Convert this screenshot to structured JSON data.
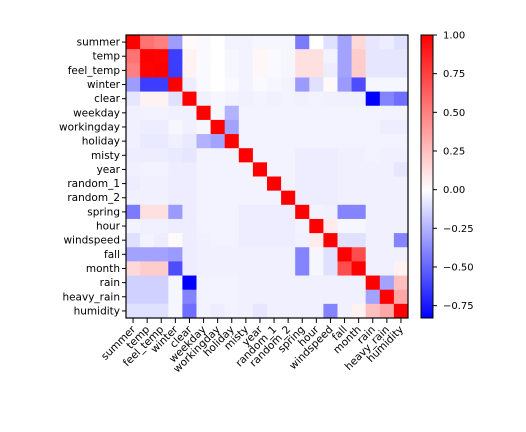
{
  "chart_data": {
    "type": "heatmap",
    "title": "",
    "xlabel": "",
    "ylabel": "",
    "labels": [
      "summer",
      "temp",
      "feel_temp",
      "winter",
      "clear",
      "weekday",
      "workingday",
      "holiday",
      "misty",
      "year",
      "random_1",
      "random_2",
      "spring",
      "hour",
      "windspeed",
      "fall",
      "month",
      "rain",
      "heavy_rain",
      "humidity"
    ],
    "matrix": [
      [
        1.0,
        0.55,
        0.5,
        -0.32,
        0.02,
        -0.02,
        0.0,
        -0.04,
        -0.04,
        -0.03,
        -0.03,
        -0.03,
        -0.43,
        0.0,
        -0.1,
        -0.3,
        0.15,
        -0.08,
        -0.06,
        -0.1
      ],
      [
        0.55,
        1.0,
        0.99,
        -0.63,
        0.05,
        -0.02,
        0.0,
        -0.03,
        -0.04,
        0.03,
        -0.02,
        -0.03,
        0.12,
        0.12,
        -0.04,
        -0.3,
        0.2,
        -0.08,
        -0.08,
        -0.08
      ],
      [
        0.5,
        0.99,
        1.0,
        -0.63,
        0.05,
        -0.02,
        0.0,
        -0.03,
        -0.04,
        0.03,
        -0.02,
        -0.03,
        0.12,
        0.12,
        -0.06,
        -0.3,
        0.2,
        -0.08,
        -0.08,
        -0.08
      ],
      [
        -0.32,
        -0.63,
        -0.63,
        1.0,
        -0.06,
        -0.02,
        0.0,
        -0.02,
        -0.04,
        -0.02,
        -0.03,
        -0.04,
        -0.33,
        -0.1,
        0.02,
        -0.33,
        -0.58,
        -0.03,
        -0.03,
        -0.03
      ],
      [
        -0.08,
        0.05,
        0.05,
        -0.1,
        1.0,
        -0.05,
        -0.03,
        -0.04,
        -0.05,
        -0.04,
        -0.05,
        -0.04,
        -0.05,
        -0.04,
        -0.05,
        -0.05,
        -0.05,
        -0.83,
        -0.4,
        -0.47
      ],
      [
        -0.05,
        -0.04,
        -0.04,
        -0.05,
        -0.05,
        1.0,
        -0.03,
        -0.25,
        -0.04,
        -0.04,
        -0.04,
        -0.04,
        -0.04,
        -0.04,
        -0.04,
        -0.04,
        -0.04,
        -0.04,
        -0.04,
        -0.04
      ],
      [
        -0.05,
        -0.06,
        -0.06,
        -0.03,
        -0.05,
        -0.03,
        1.0,
        -0.3,
        -0.04,
        -0.04,
        -0.04,
        -0.04,
        -0.04,
        -0.04,
        -0.04,
        -0.04,
        -0.04,
        -0.04,
        -0.06,
        -0.06
      ],
      [
        -0.05,
        -0.07,
        -0.07,
        -0.05,
        -0.07,
        -0.25,
        -0.3,
        1.0,
        -0.04,
        -0.04,
        -0.04,
        -0.04,
        -0.04,
        -0.04,
        -0.04,
        -0.04,
        -0.04,
        -0.04,
        -0.04,
        -0.04
      ],
      [
        -0.06,
        -0.06,
        -0.06,
        -0.07,
        -0.08,
        -0.04,
        -0.04,
        -0.04,
        1.0,
        -0.04,
        -0.04,
        -0.04,
        -0.06,
        -0.06,
        -0.06,
        -0.05,
        -0.05,
        -0.04,
        -0.05,
        -0.05
      ],
      [
        -0.05,
        -0.04,
        -0.04,
        -0.06,
        -0.06,
        -0.04,
        -0.04,
        -0.04,
        -0.04,
        1.0,
        -0.04,
        -0.04,
        -0.06,
        -0.06,
        -0.06,
        -0.05,
        -0.05,
        -0.05,
        -0.05,
        -0.08
      ],
      [
        -0.06,
        -0.05,
        -0.05,
        -0.06,
        -0.06,
        -0.04,
        -0.04,
        -0.04,
        -0.04,
        -0.04,
        1.0,
        -0.04,
        -0.06,
        -0.06,
        -0.06,
        -0.05,
        -0.05,
        -0.05,
        -0.05,
        -0.05
      ],
      [
        -0.05,
        -0.05,
        -0.05,
        -0.06,
        -0.06,
        -0.04,
        -0.04,
        -0.04,
        -0.04,
        -0.04,
        -0.04,
        1.0,
        -0.06,
        -0.06,
        -0.06,
        -0.05,
        -0.05,
        -0.05,
        -0.05,
        -0.05
      ],
      [
        -0.43,
        0.12,
        0.12,
        -0.33,
        -0.06,
        -0.04,
        -0.04,
        -0.04,
        -0.06,
        -0.06,
        -0.06,
        -0.06,
        1.0,
        -0.04,
        -0.05,
        -0.4,
        -0.4,
        -0.05,
        -0.05,
        -0.05
      ],
      [
        -0.04,
        -0.05,
        -0.05,
        -0.06,
        -0.06,
        -0.04,
        -0.04,
        -0.04,
        -0.06,
        -0.06,
        -0.06,
        -0.06,
        -0.04,
        1.0,
        0.08,
        -0.03,
        -0.03,
        -0.05,
        -0.05,
        -0.05
      ],
      [
        -0.1,
        -0.04,
        -0.06,
        0.02,
        -0.06,
        -0.05,
        -0.04,
        -0.04,
        -0.06,
        -0.06,
        -0.06,
        -0.06,
        -0.05,
        0.08,
        1.0,
        -0.1,
        -0.1,
        -0.05,
        -0.05,
        -0.4
      ],
      [
        -0.3,
        -0.3,
        -0.3,
        -0.33,
        -0.06,
        -0.05,
        -0.05,
        -0.05,
        -0.05,
        -0.05,
        -0.05,
        -0.05,
        -0.4,
        -0.03,
        -0.1,
        1.0,
        0.7,
        -0.05,
        -0.05,
        -0.05
      ],
      [
        0.15,
        0.2,
        0.2,
        -0.58,
        -0.06,
        -0.05,
        -0.05,
        -0.05,
        -0.05,
        -0.05,
        -0.05,
        -0.05,
        -0.4,
        -0.03,
        -0.1,
        0.7,
        1.0,
        -0.05,
        -0.05,
        0.05
      ],
      [
        -0.15,
        -0.15,
        -0.15,
        -0.03,
        -0.83,
        -0.04,
        -0.04,
        -0.04,
        -0.05,
        -0.05,
        -0.05,
        -0.05,
        -0.05,
        -0.05,
        -0.05,
        -0.05,
        -0.05,
        1.0,
        -0.3,
        0.25
      ],
      [
        -0.15,
        -0.15,
        -0.15,
        -0.03,
        -0.4,
        -0.04,
        -0.04,
        -0.04,
        -0.05,
        -0.05,
        -0.05,
        -0.05,
        -0.05,
        -0.05,
        -0.05,
        -0.05,
        -0.05,
        -0.3,
        1.0,
        0.35
      ],
      [
        -0.1,
        -0.1,
        -0.1,
        -0.03,
        -0.47,
        -0.04,
        -0.06,
        -0.04,
        -0.05,
        -0.08,
        -0.05,
        -0.05,
        -0.05,
        -0.05,
        -0.4,
        -0.05,
        0.05,
        0.25,
        0.35,
        1.0
      ]
    ],
    "colorbar": {
      "vmin": -0.83,
      "vmax": 1.0,
      "ticks": [
        "1.00",
        "0.75",
        "0.50",
        "0.25",
        "0.00",
        "−0.25",
        "−0.50",
        "−0.75"
      ],
      "tick_values": [
        1.0,
        0.75,
        0.5,
        0.25,
        0.0,
        -0.25,
        -0.5,
        -0.75
      ]
    },
    "colormap": "bwr",
    "grid": false
  }
}
